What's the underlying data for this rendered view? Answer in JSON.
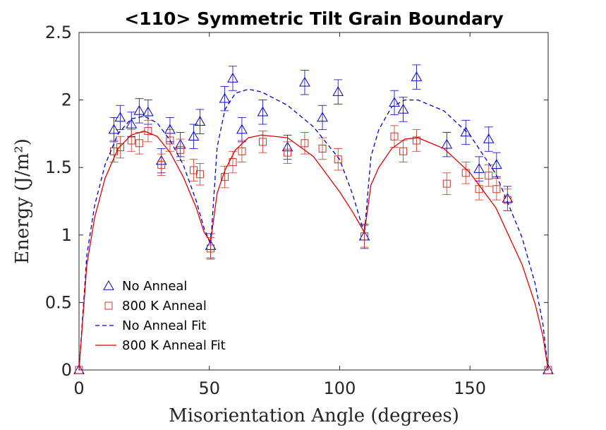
{
  "chart_data": {
    "type": "scatter",
    "title": "<110> Symmetric Tilt Grain Boundary",
    "xlabel": "Misorientation Angle (degrees)",
    "ylabel": "Energy (J/m²)",
    "xlim": [
      0,
      180
    ],
    "ylim": [
      0,
      2.5
    ],
    "xticks": [
      "0",
      "50",
      "100",
      "150"
    ],
    "yticks": [
      "0",
      "0.5",
      "1",
      "1.5",
      "2",
      "2.5"
    ],
    "grid": false,
    "legend_position": "lower-left",
    "series": [
      {
        "name": "No Anneal",
        "kind": "scatter",
        "marker": "triangle",
        "color": "#0000c8",
        "x": [
          0,
          13.4,
          15.8,
          20.1,
          23.1,
          26.5,
          31.6,
          34.9,
          38.9,
          44.0,
          46.4,
          50.5,
          55.9,
          59.0,
          62.5,
          70.5,
          80.0,
          86.6,
          93.4,
          99.4,
          109.5,
          121.0,
          124.4,
          129.5,
          141.1,
          148.4,
          153.5,
          157.2,
          160.2,
          164.4,
          180
        ],
        "y": [
          0,
          1.78,
          1.87,
          1.82,
          1.92,
          1.91,
          1.55,
          1.78,
          1.67,
          1.73,
          1.84,
          0.92,
          2.01,
          2.16,
          1.78,
          1.91,
          1.65,
          2.13,
          1.87,
          2.06,
          0.99,
          1.98,
          1.93,
          2.17,
          1.67,
          1.76,
          1.49,
          1.71,
          1.52,
          1.27,
          0
        ],
        "error": 0.09
      },
      {
        "name": "800 K Anneal",
        "kind": "scatter",
        "marker": "square",
        "color": "#d03020",
        "x": [
          0,
          13.4,
          15.8,
          20.1,
          23.1,
          26.5,
          31.6,
          34.9,
          38.9,
          44.0,
          46.4,
          50.5,
          55.9,
          59.0,
          62.5,
          70.5,
          80.0,
          86.6,
          93.4,
          99.4,
          109.5,
          121.0,
          124.4,
          129.5,
          141.1,
          148.4,
          153.5,
          157.2,
          160.2,
          164.4,
          180
        ],
        "y": [
          0,
          1.62,
          1.65,
          1.7,
          1.68,
          1.77,
          1.52,
          1.7,
          1.63,
          1.48,
          1.45,
          0.9,
          1.43,
          1.54,
          1.62,
          1.69,
          1.61,
          1.68,
          1.64,
          1.56,
          0.99,
          1.73,
          1.62,
          1.7,
          1.38,
          1.46,
          1.34,
          1.44,
          1.34,
          1.26,
          0
        ],
        "error": 0.08
      },
      {
        "name": "No Anneal Fit",
        "kind": "line",
        "style": "dashed",
        "color": "#0000c8",
        "x": [
          0,
          3,
          6,
          10,
          15,
          20,
          25,
          30,
          35,
          40,
          45,
          48,
          50.5,
          53,
          56,
          60,
          65,
          70,
          80,
          90,
          100,
          105,
          109.5,
          112,
          115,
          120,
          125,
          130,
          140,
          150,
          160,
          170,
          175,
          178,
          180
        ],
        "y": [
          0,
          0.85,
          1.22,
          1.52,
          1.75,
          1.86,
          1.88,
          1.83,
          1.7,
          1.52,
          1.25,
          1.05,
          0.93,
          1.65,
          1.93,
          2.05,
          2.08,
          2.06,
          1.96,
          1.8,
          1.56,
          1.3,
          1.01,
          1.58,
          1.78,
          1.95,
          2.0,
          2.0,
          1.92,
          1.74,
          1.45,
          0.98,
          0.64,
          0.34,
          0
        ]
      },
      {
        "name": "800 K Anneal Fit",
        "kind": "line",
        "style": "solid",
        "color": "#e00000",
        "x": [
          0,
          3,
          6,
          10,
          15,
          20,
          25,
          30,
          35,
          40,
          45,
          48,
          50.5,
          53,
          56,
          60,
          65,
          70,
          80,
          90,
          100,
          105,
          109.5,
          112,
          115,
          120,
          125,
          130,
          140,
          150,
          160,
          170,
          175,
          178,
          180
        ],
        "y": [
          0,
          0.78,
          1.13,
          1.42,
          1.64,
          1.74,
          1.77,
          1.73,
          1.61,
          1.43,
          1.2,
          1.02,
          0.95,
          1.31,
          1.48,
          1.63,
          1.72,
          1.74,
          1.72,
          1.58,
          1.32,
          1.17,
          1.02,
          1.37,
          1.5,
          1.64,
          1.71,
          1.72,
          1.64,
          1.46,
          1.2,
          0.78,
          0.49,
          0.25,
          0
        ]
      }
    ]
  }
}
